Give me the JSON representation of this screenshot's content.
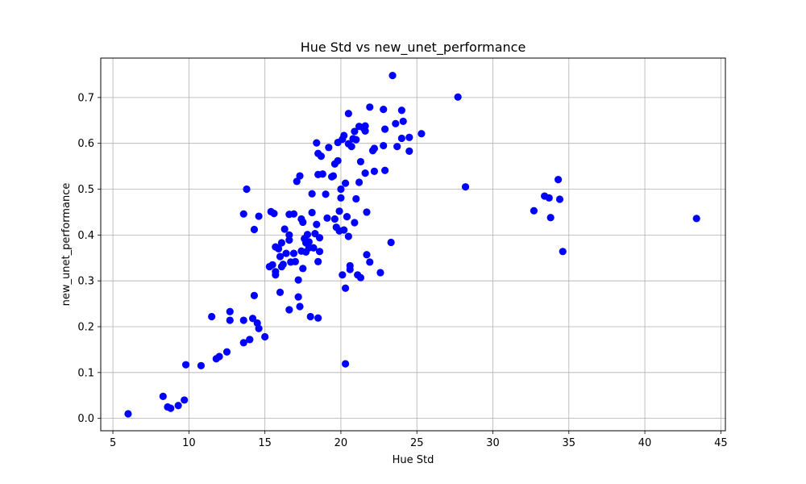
{
  "chart_data": {
    "type": "scatter",
    "title": "Hue Std vs new_unet_performance",
    "xlabel": "Hue Std",
    "ylabel": "new_unet_performance",
    "xlim": [
      4.2,
      45.3
    ],
    "ylim": [
      -0.027,
      0.786
    ],
    "xticks": [
      5,
      10,
      15,
      20,
      25,
      30,
      35,
      40,
      45
    ],
    "yticks": [
      0.0,
      0.1,
      0.2,
      0.3,
      0.4,
      0.5,
      0.6,
      0.7
    ],
    "grid": true,
    "marker_color": "#0000ff",
    "series": [
      {
        "points": [
          [
            6.0,
            0.01
          ],
          [
            8.3,
            0.048
          ],
          [
            8.6,
            0.025
          ],
          [
            8.8,
            0.022
          ],
          [
            9.3,
            0.028
          ],
          [
            9.7,
            0.04
          ],
          [
            9.8,
            0.117
          ],
          [
            10.8,
            0.115
          ],
          [
            11.5,
            0.222
          ],
          [
            11.8,
            0.13
          ],
          [
            12.0,
            0.135
          ],
          [
            12.5,
            0.145
          ],
          [
            12.7,
            0.233
          ],
          [
            12.7,
            0.214
          ],
          [
            13.6,
            0.165
          ],
          [
            13.6,
            0.214
          ],
          [
            13.6,
            0.446
          ],
          [
            13.8,
            0.5
          ],
          [
            14.0,
            0.172
          ],
          [
            14.0,
            0.172
          ],
          [
            14.2,
            0.218
          ],
          [
            14.3,
            0.412
          ],
          [
            14.3,
            0.268
          ],
          [
            14.5,
            0.208
          ],
          [
            14.6,
            0.196
          ],
          [
            14.6,
            0.441
          ],
          [
            15.0,
            0.178
          ],
          [
            15.3,
            0.331
          ],
          [
            15.4,
            0.451
          ],
          [
            15.5,
            0.335
          ],
          [
            15.6,
            0.447
          ],
          [
            15.7,
            0.32
          ],
          [
            15.7,
            0.313
          ],
          [
            15.7,
            0.374
          ],
          [
            15.9,
            0.37
          ],
          [
            16.0,
            0.353
          ],
          [
            16.0,
            0.275
          ],
          [
            16.1,
            0.383
          ],
          [
            16.1,
            0.331
          ],
          [
            16.2,
            0.336
          ],
          [
            16.3,
            0.413
          ],
          [
            16.4,
            0.36
          ],
          [
            16.6,
            0.237
          ],
          [
            16.6,
            0.4
          ],
          [
            16.6,
            0.445
          ],
          [
            16.6,
            0.389
          ],
          [
            16.7,
            0.341
          ],
          [
            16.9,
            0.446
          ],
          [
            16.9,
            0.36
          ],
          [
            17.0,
            0.342
          ],
          [
            17.1,
            0.517
          ],
          [
            17.2,
            0.302
          ],
          [
            17.2,
            0.265
          ],
          [
            17.3,
            0.529
          ],
          [
            17.3,
            0.244
          ],
          [
            17.4,
            0.365
          ],
          [
            17.4,
            0.435
          ],
          [
            17.5,
            0.428
          ],
          [
            17.5,
            0.327
          ],
          [
            17.6,
            0.392
          ],
          [
            17.7,
            0.383
          ],
          [
            17.7,
            0.363
          ],
          [
            17.8,
            0.401
          ],
          [
            17.9,
            0.372
          ],
          [
            17.9,
            0.385
          ],
          [
            18.0,
            0.222
          ],
          [
            18.1,
            0.49
          ],
          [
            18.1,
            0.449
          ],
          [
            18.2,
            0.372
          ],
          [
            18.3,
            0.403
          ],
          [
            18.4,
            0.423
          ],
          [
            18.4,
            0.601
          ],
          [
            18.5,
            0.342
          ],
          [
            18.5,
            0.219
          ],
          [
            18.5,
            0.532
          ],
          [
            18.5,
            0.578
          ],
          [
            18.6,
            0.394
          ],
          [
            18.6,
            0.364
          ],
          [
            18.7,
            0.572
          ],
          [
            18.8,
            0.533
          ],
          [
            19.0,
            0.489
          ],
          [
            19.1,
            0.437
          ],
          [
            19.2,
            0.591
          ],
          [
            19.4,
            0.527
          ],
          [
            19.5,
            0.529
          ],
          [
            19.6,
            0.555
          ],
          [
            19.6,
            0.435
          ],
          [
            19.7,
            0.417
          ],
          [
            19.8,
            0.602
          ],
          [
            19.8,
            0.562
          ],
          [
            19.9,
            0.452
          ],
          [
            19.9,
            0.409
          ],
          [
            20.0,
            0.5
          ],
          [
            20.0,
            0.481
          ],
          [
            20.1,
            0.313
          ],
          [
            20.1,
            0.609
          ],
          [
            20.2,
            0.617
          ],
          [
            20.2,
            0.411
          ],
          [
            20.3,
            0.284
          ],
          [
            20.3,
            0.513
          ],
          [
            20.3,
            0.119
          ],
          [
            20.4,
            0.44
          ],
          [
            20.5,
            0.665
          ],
          [
            20.5,
            0.397
          ],
          [
            20.5,
            0.599
          ],
          [
            20.6,
            0.333
          ],
          [
            20.6,
            0.325
          ],
          [
            20.7,
            0.593
          ],
          [
            20.8,
            0.61
          ],
          [
            20.9,
            0.427
          ],
          [
            20.9,
            0.626
          ],
          [
            21.0,
            0.479
          ],
          [
            21.0,
            0.608
          ],
          [
            21.1,
            0.313
          ],
          [
            21.2,
            0.637
          ],
          [
            21.2,
            0.515
          ],
          [
            21.3,
            0.307
          ],
          [
            21.3,
            0.56
          ],
          [
            21.5,
            0.633
          ],
          [
            21.6,
            0.638
          ],
          [
            21.6,
            0.535
          ],
          [
            21.6,
            0.627
          ],
          [
            21.7,
            0.45
          ],
          [
            21.7,
            0.357
          ],
          [
            21.9,
            0.341
          ],
          [
            21.9,
            0.679
          ],
          [
            22.1,
            0.584
          ],
          [
            22.2,
            0.589
          ],
          [
            22.2,
            0.539
          ],
          [
            22.6,
            0.318
          ],
          [
            22.8,
            0.595
          ],
          [
            22.8,
            0.674
          ],
          [
            22.9,
            0.541
          ],
          [
            22.9,
            0.631
          ],
          [
            23.3,
            0.384
          ],
          [
            23.4,
            0.748
          ],
          [
            23.6,
            0.643
          ],
          [
            23.7,
            0.593
          ],
          [
            24.0,
            0.672
          ],
          [
            24.0,
            0.611
          ],
          [
            24.1,
            0.648
          ],
          [
            24.5,
            0.583
          ],
          [
            24.5,
            0.613
          ],
          [
            25.3,
            0.621
          ],
          [
            27.7,
            0.701
          ],
          [
            28.2,
            0.505
          ],
          [
            32.7,
            0.453
          ],
          [
            33.4,
            0.485
          ],
          [
            33.7,
            0.481
          ],
          [
            33.8,
            0.438
          ],
          [
            34.3,
            0.521
          ],
          [
            34.4,
            0.478
          ],
          [
            34.6,
            0.364
          ],
          [
            43.4,
            0.436
          ]
        ]
      }
    ]
  }
}
